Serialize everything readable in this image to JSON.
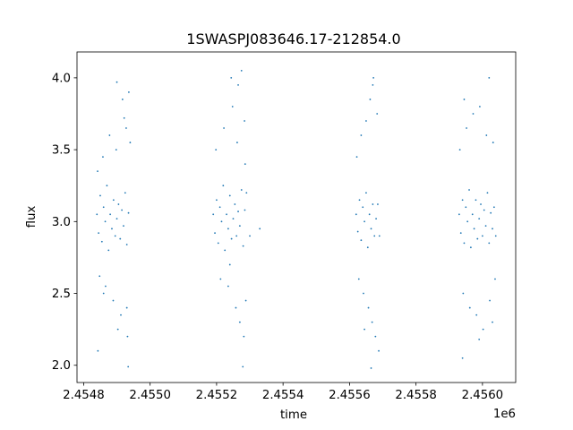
{
  "chart_data": {
    "type": "scatter",
    "title": "1SWASPJ083646.17-212854.0",
    "xlabel": "time",
    "ylabel": "flux",
    "x_offset_label": "1e6",
    "xlim": [
      2454780,
      2456100
    ],
    "ylim": [
      1.88,
      4.18
    ],
    "x_ticks": [
      2454800,
      2455000,
      2455200,
      2455400,
      2455600,
      2455800,
      2456000
    ],
    "x_tick_labels": [
      "2.4548",
      "2.4550",
      "2.4552",
      "2.4554",
      "2.4556",
      "2.4558",
      "2.4560"
    ],
    "y_ticks": [
      2.0,
      2.5,
      3.0,
      3.5,
      4.0
    ],
    "y_tick_labels": [
      "2.0",
      "2.5",
      "3.0",
      "3.5",
      "4.0"
    ],
    "grid": false,
    "legend": "none",
    "marker_color": "#1f77b4",
    "series": [
      {
        "points": [
          [
            2454840,
            3.05
          ],
          [
            2454845,
            2.92
          ],
          [
            2454850,
            3.18
          ],
          [
            2454855,
            2.86
          ],
          [
            2454860,
            3.1
          ],
          [
            2454865,
            3.0
          ],
          [
            2454870,
            3.25
          ],
          [
            2454875,
            2.8
          ],
          [
            2454880,
            3.05
          ],
          [
            2454885,
            2.95
          ],
          [
            2454890,
            3.15
          ],
          [
            2454895,
            2.9
          ],
          [
            2454900,
            3.02
          ],
          [
            2454905,
            3.12
          ],
          [
            2454910,
            2.88
          ],
          [
            2454915,
            3.08
          ],
          [
            2454920,
            2.97
          ],
          [
            2454925,
            3.2
          ],
          [
            2454930,
            2.84
          ],
          [
            2454935,
            3.06
          ],
          [
            2454842,
            3.35
          ],
          [
            2454848,
            2.62
          ],
          [
            2454858,
            3.45
          ],
          [
            2454866,
            2.55
          ],
          [
            2454878,
            3.6
          ],
          [
            2454889,
            2.45
          ],
          [
            2454898,
            3.5
          ],
          [
            2454912,
            2.35
          ],
          [
            2454922,
            3.72
          ],
          [
            2454932,
            2.2
          ],
          [
            2454936,
            3.9
          ],
          [
            2454930,
            2.4
          ],
          [
            2454843,
            2.1
          ],
          [
            2454903,
            2.25
          ],
          [
            2454917,
            3.85
          ],
          [
            2454934,
            1.99
          ],
          [
            2454928,
            3.65
          ],
          [
            2454940,
            3.55
          ],
          [
            2454860,
            2.5
          ],
          [
            2454900,
            3.97
          ],
          [
            2455190,
            3.05
          ],
          [
            2455195,
            2.92
          ],
          [
            2455200,
            3.15
          ],
          [
            2455205,
            2.85
          ],
          [
            2455210,
            3.1
          ],
          [
            2455215,
            3.0
          ],
          [
            2455220,
            3.25
          ],
          [
            2455225,
            2.8
          ],
          [
            2455230,
            3.05
          ],
          [
            2455235,
            2.95
          ],
          [
            2455240,
            3.18
          ],
          [
            2455245,
            2.88
          ],
          [
            2455250,
            3.02
          ],
          [
            2455255,
            3.12
          ],
          [
            2455260,
            2.9
          ],
          [
            2455265,
            3.07
          ],
          [
            2455270,
            2.97
          ],
          [
            2455275,
            3.22
          ],
          [
            2455280,
            2.83
          ],
          [
            2455285,
            3.08
          ],
          [
            2455198,
            3.5
          ],
          [
            2455212,
            2.6
          ],
          [
            2455222,
            3.65
          ],
          [
            2455235,
            2.55
          ],
          [
            2455248,
            3.8
          ],
          [
            2455258,
            2.4
          ],
          [
            2455265,
            3.95
          ],
          [
            2455270,
            2.3
          ],
          [
            2455275,
            4.05
          ],
          [
            2455282,
            2.2
          ],
          [
            2455284,
            3.7
          ],
          [
            2455279,
            1.99
          ],
          [
            2455262,
            3.55
          ],
          [
            2455240,
            2.7
          ],
          [
            2455290,
            3.2
          ],
          [
            2455330,
            2.95
          ],
          [
            2455300,
            2.9
          ],
          [
            2455288,
            2.45
          ],
          [
            2455286,
            3.4
          ],
          [
            2455244,
            4.0
          ],
          [
            2455620,
            3.05
          ],
          [
            2455625,
            2.93
          ],
          [
            2455630,
            3.15
          ],
          [
            2455635,
            2.87
          ],
          [
            2455640,
            3.1
          ],
          [
            2455645,
            3.0
          ],
          [
            2455650,
            3.2
          ],
          [
            2455655,
            2.82
          ],
          [
            2455660,
            3.05
          ],
          [
            2455665,
            2.95
          ],
          [
            2455670,
            3.12
          ],
          [
            2455675,
            2.9
          ],
          [
            2455680,
            3.02
          ],
          [
            2455685,
            3.12
          ],
          [
            2455690,
            2.9
          ],
          [
            2455622,
            3.45
          ],
          [
            2455628,
            2.6
          ],
          [
            2455635,
            3.6
          ],
          [
            2455642,
            2.5
          ],
          [
            2455650,
            3.7
          ],
          [
            2455657,
            2.4
          ],
          [
            2455662,
            3.85
          ],
          [
            2455668,
            2.3
          ],
          [
            2455672,
            4.0
          ],
          [
            2455678,
            2.2
          ],
          [
            2455683,
            3.75
          ],
          [
            2455688,
            2.1
          ],
          [
            2455665,
            1.98
          ],
          [
            2455670,
            3.95
          ],
          [
            2455645,
            2.25
          ],
          [
            2455930,
            3.05
          ],
          [
            2455935,
            2.92
          ],
          [
            2455940,
            3.15
          ],
          [
            2455945,
            2.85
          ],
          [
            2455950,
            3.1
          ],
          [
            2455955,
            3.0
          ],
          [
            2455960,
            3.22
          ],
          [
            2455965,
            2.82
          ],
          [
            2455970,
            3.05
          ],
          [
            2455975,
            2.95
          ],
          [
            2455980,
            3.15
          ],
          [
            2455985,
            2.88
          ],
          [
            2455990,
            3.02
          ],
          [
            2455995,
            3.12
          ],
          [
            2456000,
            2.9
          ],
          [
            2456005,
            3.08
          ],
          [
            2456010,
            2.97
          ],
          [
            2456015,
            3.2
          ],
          [
            2456020,
            2.85
          ],
          [
            2456025,
            3.06
          ],
          [
            2456030,
            2.95
          ],
          [
            2456035,
            3.1
          ],
          [
            2456040,
            2.9
          ],
          [
            2455932,
            3.5
          ],
          [
            2455942,
            2.5
          ],
          [
            2455952,
            3.65
          ],
          [
            2455962,
            2.4
          ],
          [
            2455972,
            3.75
          ],
          [
            2455982,
            2.35
          ],
          [
            2455992,
            3.8
          ],
          [
            2456002,
            2.25
          ],
          [
            2456012,
            3.6
          ],
          [
            2456022,
            2.45
          ],
          [
            2456032,
            3.55
          ],
          [
            2456038,
            2.6
          ],
          [
            2455940,
            2.05
          ],
          [
            2455990,
            2.18
          ],
          [
            2456020,
            4.0
          ],
          [
            2455945,
            3.85
          ],
          [
            2456030,
            2.3
          ]
        ]
      }
    ]
  }
}
